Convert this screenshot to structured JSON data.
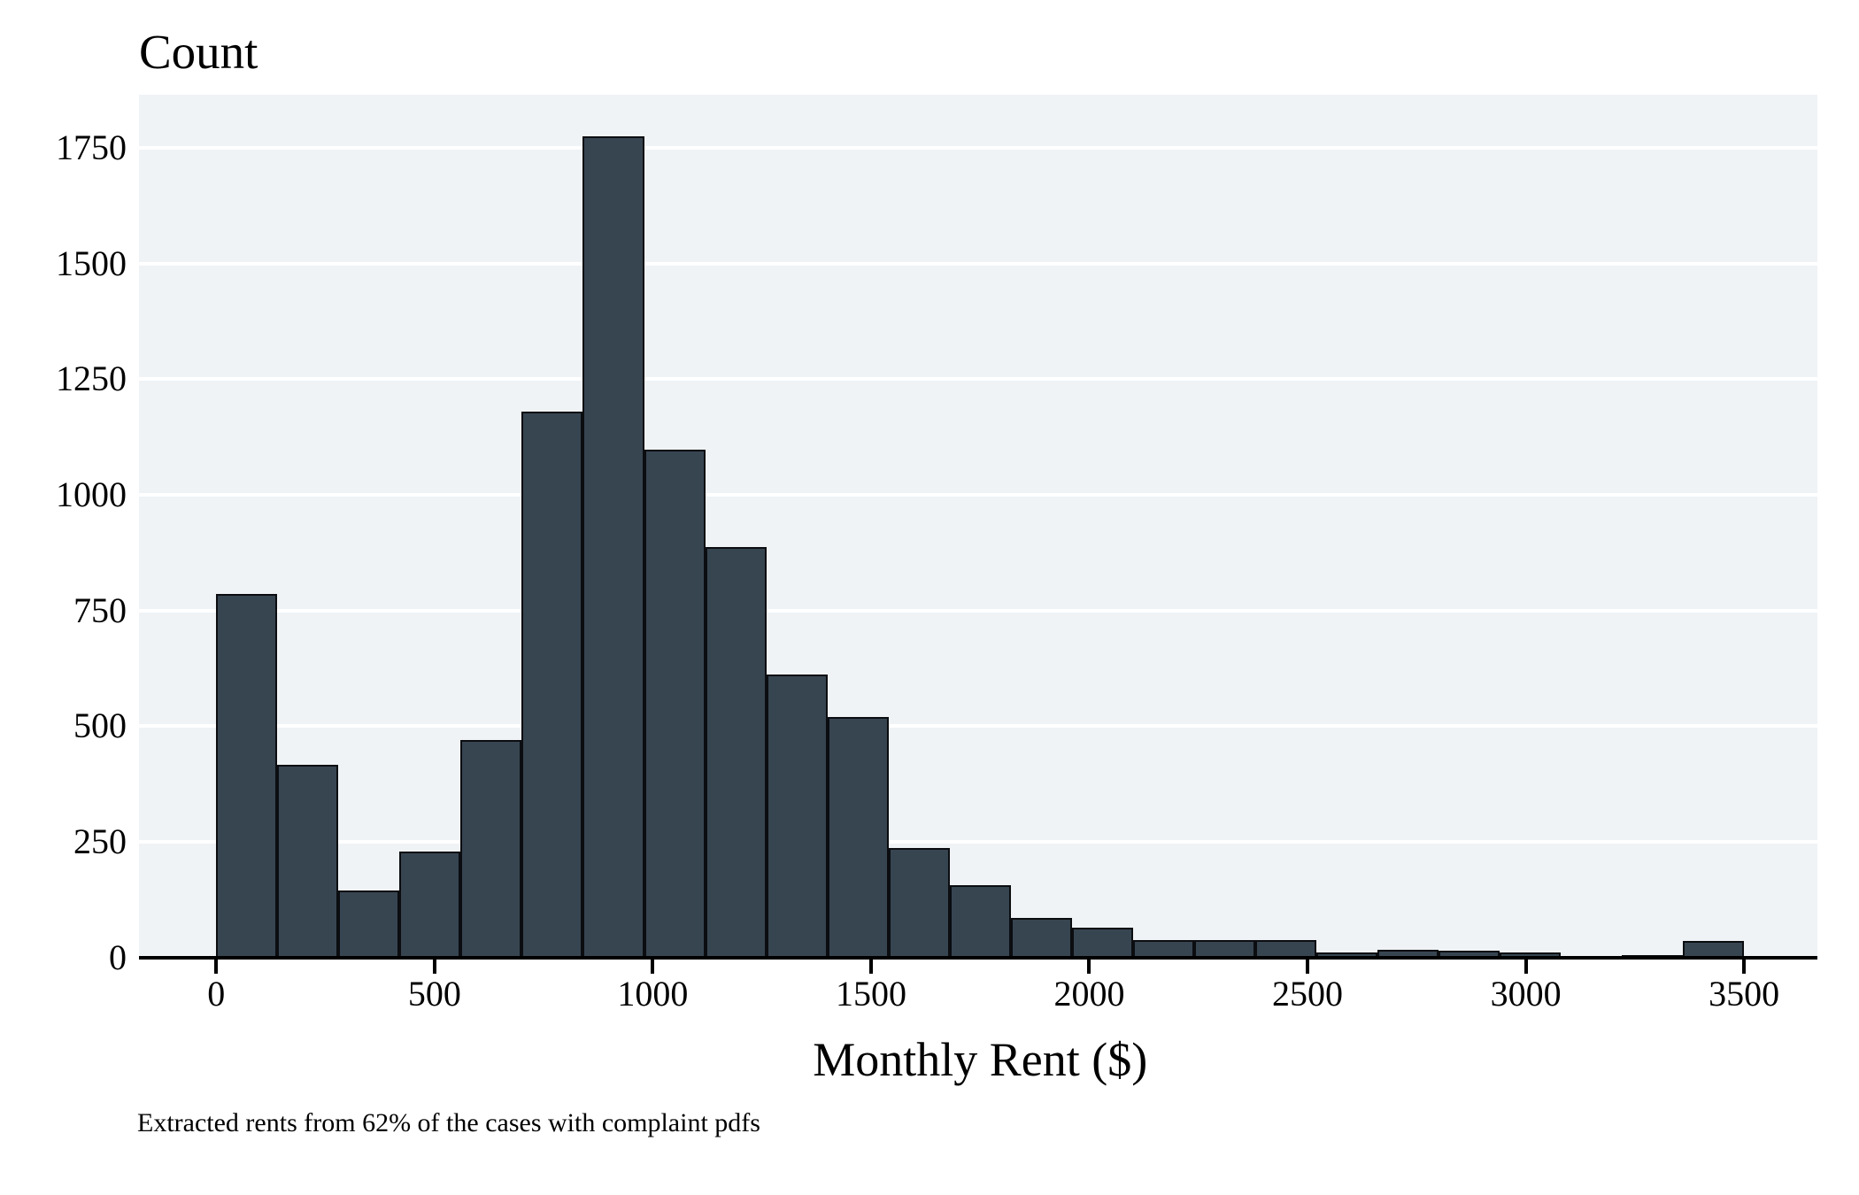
{
  "figure": {
    "title": "Count",
    "x_axis_label": "Monthly Rent ($)",
    "caption": "Extracted rents from 62% of the cases with complaint pdfs"
  },
  "chart_data": {
    "type": "bar",
    "subtype": "histogram",
    "title": "Count",
    "xlabel": "Monthly Rent ($)",
    "ylabel": "Count",
    "annotation": "Extracted rents from 62% of the cases with complaint pdfs",
    "legend": "none",
    "grid": "horizontal white gridlines on light panel",
    "bin_width": 140,
    "bin_edges": [
      0,
      140,
      280,
      420,
      560,
      700,
      840,
      980,
      1120,
      1260,
      1400,
      1540,
      1680,
      1820,
      1960,
      2100,
      2240,
      2380,
      2520,
      2660,
      2800,
      2940,
      3080,
      3220,
      3360,
      3500
    ],
    "counts": [
      785,
      416,
      145,
      228,
      470,
      1180,
      1776,
      1098,
      888,
      612,
      520,
      237,
      156,
      85,
      65,
      38,
      37,
      38,
      11,
      17,
      15,
      10,
      2,
      4,
      35
    ],
    "x_ticks": [
      0,
      500,
      1000,
      1500,
      2000,
      2500,
      3000,
      3500
    ],
    "y_ticks": [
      0,
      250,
      500,
      750,
      1000,
      1250,
      1500,
      1750
    ],
    "xlim": [
      -177,
      3668
    ],
    "ylim": [
      0,
      1865
    ],
    "colors": {
      "bar_fill": "#374551",
      "bar_edge": "#0b0d10",
      "plot_background": "#f0f3f6",
      "gridline": "#ffffff",
      "axis_and_text": "#000000",
      "page_background": "#ffffff"
    }
  }
}
